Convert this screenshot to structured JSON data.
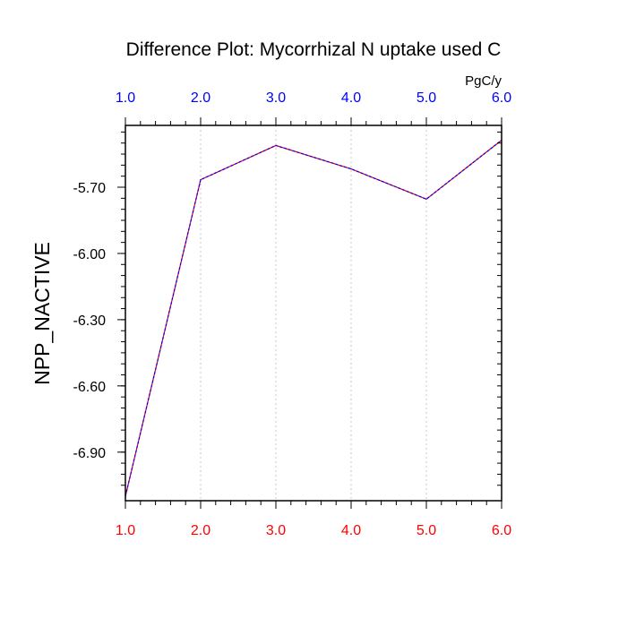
{
  "chart_data": {
    "type": "line",
    "title": "Difference Plot: Mycorrhizal N uptake used C",
    "units": "PgC/y",
    "xlabel": "",
    "ylabel": "NPP_NACTIVE",
    "x": [
      1.0,
      2.0,
      3.0,
      4.0,
      5.0,
      6.0
    ],
    "series": [
      {
        "values": [
          -7.1,
          -5.666,
          -5.511,
          -5.617,
          -5.754,
          -5.487
        ],
        "color": "#ff0000",
        "overlay_color": "#0000ff",
        "style": "dashed"
      }
    ],
    "xlim": [
      1.0,
      6.0
    ],
    "ylim": [
      -7.12,
      -5.42
    ],
    "xticks": [
      "1.0",
      "2.0",
      "3.0",
      "4.0",
      "5.0",
      "6.0"
    ],
    "yticks": [
      {
        "value": -5.7,
        "label": "-5.70"
      },
      {
        "value": -6.0,
        "label": "-6.00"
      },
      {
        "value": -6.3,
        "label": "-6.30"
      },
      {
        "value": -6.6,
        "label": "-6.60"
      },
      {
        "value": -6.9,
        "label": "-6.90"
      }
    ],
    "top_tick_color": "#0000ff",
    "bottom_tick_color": "#ff0000",
    "vertical_grid": true,
    "grid_color": "#c8c8c8"
  }
}
